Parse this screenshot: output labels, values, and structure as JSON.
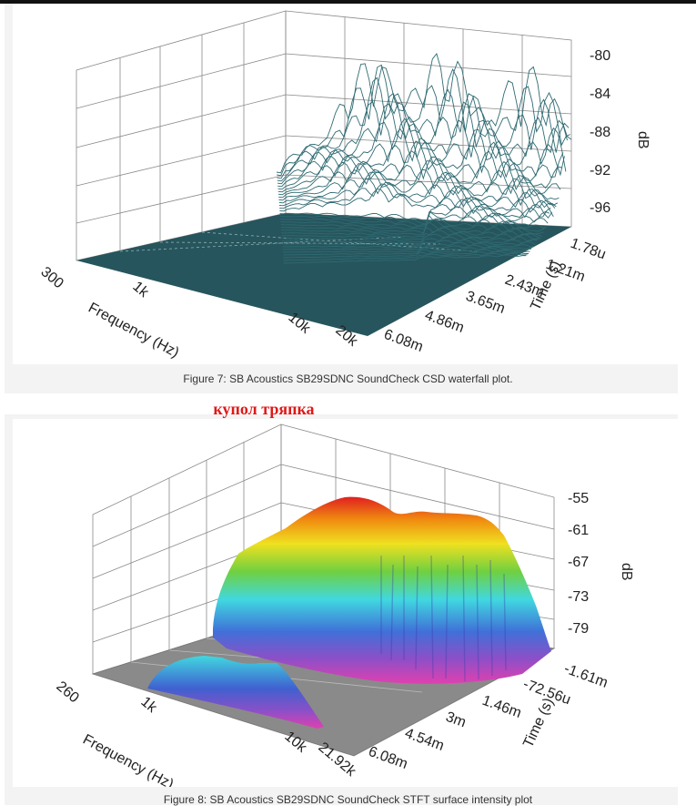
{
  "annotation": "купол тряпка",
  "figures": [
    {
      "caption": "Figure 7: SB Acoustics SB29SDNC SoundCheck CSD waterfall plot."
    },
    {
      "caption": "Figure 8: SB Acoustics SB29SDNC SoundCheck STFT surface intensity plot"
    }
  ],
  "colors": {
    "waterfall": "#2f6a72",
    "waterfall_floor": "#27555d",
    "floor2": "#8a8a8a"
  },
  "chart_data": [
    {
      "type": "surface3d",
      "zlabel": "dB",
      "xlabel": "Frequency (Hz)",
      "ylabel": "Time (s)",
      "x_ticks": [
        "300",
        "1k",
        "10k",
        "20k"
      ],
      "y_ticks": [
        "1.78u",
        "1.21m",
        "2.43m",
        "3.65m",
        "4.86m",
        "6.08m"
      ],
      "z_ticks": [
        "-80",
        "-84",
        "-88",
        "-92",
        "-96"
      ],
      "zlim": [
        -100,
        -78
      ]
    },
    {
      "type": "surface3d",
      "zlabel": "dB",
      "xlabel": "Frequency (Hz)",
      "ylabel": "Time (s)",
      "x_ticks": [
        "260",
        "1k",
        "10k",
        "21.92k"
      ],
      "y_ticks": [
        "-1.61m",
        "-72.56u",
        "1.46m",
        "3m",
        "4.54m",
        "6.08m"
      ],
      "z_ticks": [
        "-55",
        "-61",
        "-67",
        "-73",
        "-79"
      ],
      "zlim": [
        -85,
        -52
      ]
    }
  ]
}
